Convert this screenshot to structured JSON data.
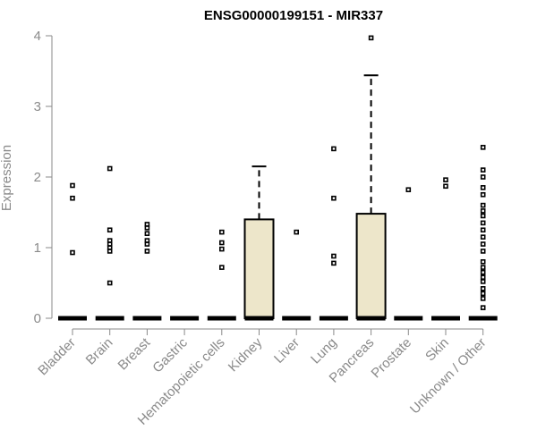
{
  "chart_data": {
    "type": "box",
    "title": "ENSG00000199151 - MIR337",
    "ylabel": "Expression",
    "xlabel": "",
    "ylim": [
      0,
      4
    ],
    "yticks": [
      0,
      1,
      2,
      3,
      4
    ],
    "colors": {
      "box_fill": "#ede6ca",
      "axis": "#8a8a8a"
    },
    "categories": [
      "Bladder",
      "Brain",
      "Breast",
      "Gastric",
      "Hematopoietic cells",
      "Kidney",
      "Liver",
      "Lung",
      "Pancreas",
      "Prostate",
      "Skin",
      "Unknown / Other"
    ],
    "boxes": [
      {
        "q1": 0,
        "median": 0,
        "q3": 0,
        "whisker_low": 0,
        "whisker_high": 0,
        "outliers": [
          0.93,
          1.7,
          1.88
        ]
      },
      {
        "q1": 0,
        "median": 0,
        "q3": 0,
        "whisker_low": 0,
        "whisker_high": 0,
        "outliers": [
          0.5,
          0.95,
          1.0,
          1.05,
          1.1,
          1.25,
          2.12
        ]
      },
      {
        "q1": 0,
        "median": 0,
        "q3": 0,
        "whisker_low": 0,
        "whisker_high": 0,
        "outliers": [
          0.95,
          1.05,
          1.1,
          1.2,
          1.28,
          1.33
        ]
      },
      {
        "q1": 0,
        "median": 0,
        "q3": 0,
        "whisker_low": 0,
        "whisker_high": 0,
        "outliers": []
      },
      {
        "q1": 0,
        "median": 0,
        "q3": 0,
        "whisker_low": 0,
        "whisker_high": 0,
        "outliers": [
          0.72,
          0.98,
          1.07,
          1.22
        ]
      },
      {
        "q1": 0,
        "median": 0,
        "q3": 1.4,
        "whisker_low": 0,
        "whisker_high": 2.15,
        "outliers": []
      },
      {
        "q1": 0,
        "median": 0,
        "q3": 0,
        "whisker_low": 0,
        "whisker_high": 0,
        "outliers": [
          1.22
        ]
      },
      {
        "q1": 0,
        "median": 0,
        "q3": 0,
        "whisker_low": 0,
        "whisker_high": 0,
        "outliers": [
          0.78,
          0.88,
          1.7,
          2.4
        ]
      },
      {
        "q1": 0,
        "median": 0,
        "q3": 1.48,
        "whisker_low": 0,
        "whisker_high": 3.44,
        "outliers": [
          3.97
        ]
      },
      {
        "q1": 0,
        "median": 0,
        "q3": 0,
        "whisker_low": 0,
        "whisker_high": 0,
        "outliers": [
          1.82
        ]
      },
      {
        "q1": 0,
        "median": 0,
        "q3": 0,
        "whisker_low": 0,
        "whisker_high": 0,
        "outliers": [
          1.87,
          1.96
        ]
      },
      {
        "q1": 0,
        "median": 0,
        "q3": 0,
        "whisker_low": 0,
        "whisker_high": 0,
        "outliers": [
          0.15,
          0.28,
          0.35,
          0.42,
          0.52,
          0.58,
          0.65,
          0.72,
          0.8,
          0.95,
          1.05,
          1.15,
          1.25,
          1.35,
          1.45,
          1.52,
          1.6,
          1.75,
          1.85,
          2.0,
          2.1,
          2.42
        ]
      }
    ]
  }
}
